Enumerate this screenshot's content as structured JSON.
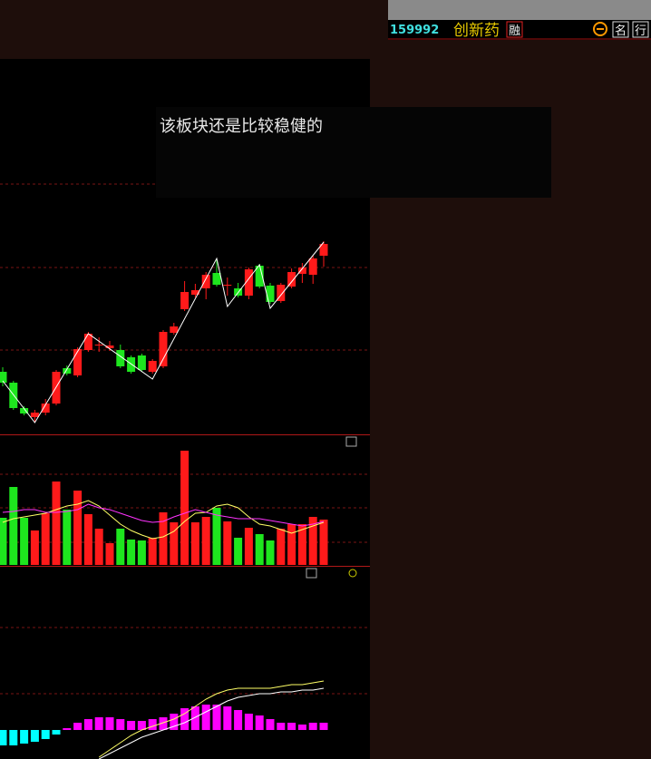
{
  "header": {
    "code": "159992",
    "name": "创新药",
    "tags": [
      "融",
      "名",
      "行"
    ]
  },
  "annotation": "该板块还是比较稳健的",
  "chart_data": [
    {
      "type": "candlestick",
      "up_color": "#ff1a1a",
      "down_color": "#1ee61e",
      "ylim": [
        0,
        413
      ],
      "gridlines": [
        275,
        183,
        92
      ],
      "open": [
        68,
        56,
        28,
        18,
        23,
        33,
        72,
        64,
        92,
        97,
        94,
        92,
        84,
        86,
        68,
        74,
        111,
        137,
        153,
        160,
        177,
        163,
        160,
        152,
        185,
        163,
        146,
        162,
        176,
        175,
        196
      ],
      "close": [
        56,
        28,
        22,
        23,
        33,
        68,
        66,
        93,
        110,
        98,
        97,
        74,
        68,
        70,
        80,
        112,
        118,
        156,
        158,
        175,
        164,
        164,
        152,
        181,
        162,
        145,
        164,
        178,
        183,
        193,
        209
      ],
      "high": [
        73,
        58,
        30,
        26,
        38,
        70,
        75,
        95,
        112,
        106,
        102,
        98,
        86,
        88,
        82,
        114,
        122,
        168,
        165,
        178,
        193,
        172,
        166,
        183,
        187,
        166,
        166,
        182,
        188,
        196,
        212
      ],
      "low": [
        52,
        26,
        20,
        12,
        20,
        31,
        64,
        62,
        90,
        90,
        91,
        72,
        66,
        68,
        66,
        72,
        109,
        135,
        150,
        148,
        162,
        152,
        150,
        148,
        160,
        143,
        144,
        160,
        166,
        165,
        184
      ],
      "zigzag": {
        "color": "#ffffff",
        "x": [
          0,
          3,
          8,
          14,
          20,
          21,
          24,
          25,
          30
        ],
        "values": [
          58,
          12,
          110,
          60,
          193,
          140,
          186,
          138,
          211
        ]
      }
    },
    {
      "type": "bar",
      "ylim": [
        0,
        143
      ],
      "gridlines": [
        100,
        63,
        25
      ],
      "values": [
        52,
        86,
        52,
        38,
        57,
        92,
        61,
        82,
        56,
        40,
        24,
        40,
        28,
        27,
        30,
        58,
        47,
        126,
        47,
        53,
        63,
        48,
        30,
        41,
        34,
        27,
        40,
        45,
        45,
        53,
        50
      ],
      "lines": [
        {
          "color": "#ffff66",
          "values": [
            47,
            51,
            53,
            55,
            57,
            61,
            65,
            67,
            71,
            65,
            55,
            45,
            38,
            33,
            29,
            31,
            37,
            48,
            57,
            58,
            65,
            67,
            63,
            53,
            45,
            43,
            39,
            35,
            39,
            43,
            47
          ]
        },
        {
          "color": "#ff33ff",
          "values": [
            58,
            59,
            61,
            61,
            58,
            58,
            59,
            61,
            67,
            63,
            61,
            57,
            53,
            49,
            47,
            48,
            53,
            57,
            61,
            58,
            55,
            53,
            51,
            51,
            51,
            49,
            47,
            45,
            43,
            45,
            48
          ]
        }
      ]
    },
    {
      "type": "macd",
      "ylim": [
        -32,
        163
      ],
      "gridlines": [
        113,
        40
      ],
      "pos_color": "#ff00ff",
      "neg_color": "#00ffff",
      "values": [
        -17,
        -17,
        -15,
        -13,
        -10,
        -5,
        2,
        8,
        12,
        14,
        14,
        12,
        10,
        10,
        12,
        14,
        18,
        24,
        26,
        28,
        28,
        26,
        22,
        18,
        16,
        12,
        8,
        8,
        6,
        8,
        8
      ],
      "lines": [
        {
          "color": "#ffff66",
          "values": [
            null,
            null,
            null,
            null,
            null,
            null,
            null,
            null,
            null,
            -30,
            -22,
            -14,
            -6,
            0,
            4,
            8,
            12,
            18,
            26,
            34,
            40,
            44,
            46,
            46,
            46,
            46,
            48,
            50,
            50,
            52,
            54
          ]
        },
        {
          "color": "#ffffff",
          "values": [
            null,
            null,
            null,
            null,
            null,
            null,
            null,
            null,
            null,
            -32,
            -26,
            -20,
            -14,
            -8,
            -4,
            0,
            4,
            8,
            14,
            20,
            26,
            32,
            36,
            38,
            40,
            40,
            42,
            42,
            44,
            44,
            46
          ]
        }
      ]
    }
  ]
}
